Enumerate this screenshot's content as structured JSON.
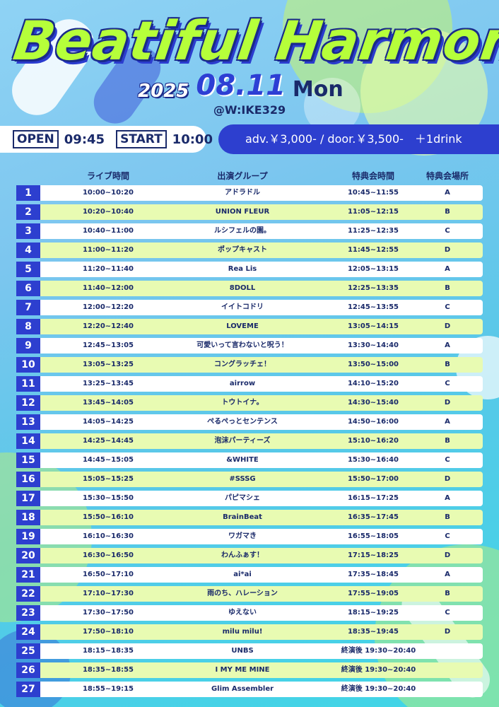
{
  "event": {
    "title": "Beatiful Harmony",
    "year": "2025",
    "month_day": "08.11",
    "weekday": "Mon",
    "venue": "@W:IKE329",
    "open_label": "OPEN",
    "open_time": "09:45",
    "start_label": "START",
    "start_time": "10:00",
    "price": "adv.￥3,000- / door.￥3,500-　＋1drink"
  },
  "table": {
    "headers": {
      "live_time": "ライブ時間",
      "group": "出演グループ",
      "perk_time": "特典会時間",
      "perk_place": "特典会場所"
    },
    "rows": [
      {
        "no": "1",
        "time": "10:00~10:20",
        "group": "アドラドル",
        "perk": "10:45~11:55",
        "place": "A"
      },
      {
        "no": "2",
        "time": "10:20~10:40",
        "group": "UNION FLEUR",
        "perk": "11:05~12:15",
        "place": "B"
      },
      {
        "no": "3",
        "time": "10:40~11:00",
        "group": "ルシフェルの園。",
        "perk": "11:25~12:35",
        "place": "C"
      },
      {
        "no": "4",
        "time": "11:00~11:20",
        "group": "ポップキャスト",
        "perk": "11:45~12:55",
        "place": "D"
      },
      {
        "no": "5",
        "time": "11:20~11:40",
        "group": "Rea Lis",
        "perk": "12:05~13:15",
        "place": "A"
      },
      {
        "no": "6",
        "time": "11:40~12:00",
        "group": "8DOLL",
        "perk": "12:25~13:35",
        "place": "B"
      },
      {
        "no": "7",
        "time": "12:00~12:20",
        "group": "イイトコドリ",
        "perk": "12:45~13:55",
        "place": "C"
      },
      {
        "no": "8",
        "time": "12:20~12:40",
        "group": "LOVEME",
        "perk": "13:05~14:15",
        "place": "D"
      },
      {
        "no": "9",
        "time": "12:45~13:05",
        "group": "可愛いって言わないと呪う！",
        "perk": "13:30~14:40",
        "place": "A"
      },
      {
        "no": "10",
        "time": "13:05~13:25",
        "group": "コングラッチェ！",
        "perk": "13:50~15:00",
        "place": "B"
      },
      {
        "no": "11",
        "time": "13:25~13:45",
        "group": "airrow",
        "perk": "14:10~15:20",
        "place": "C"
      },
      {
        "no": "12",
        "time": "13:45~14:05",
        "group": "トウトイナ。",
        "perk": "14:30~15:40",
        "place": "D"
      },
      {
        "no": "13",
        "time": "14:05~14:25",
        "group": "ぺるぺっとセンテンス",
        "perk": "14:50~16:00",
        "place": "A"
      },
      {
        "no": "14",
        "time": "14:25~14:45",
        "group": "泡沫パーティーズ",
        "perk": "15:10~16:20",
        "place": "B"
      },
      {
        "no": "15",
        "time": "14:45~15:05",
        "group": "&WHITE",
        "perk": "15:30~16:40",
        "place": "C"
      },
      {
        "no": "16",
        "time": "15:05~15:25",
        "group": "#SSSG",
        "perk": "15:50~17:00",
        "place": "D"
      },
      {
        "no": "17",
        "time": "15:30~15:50",
        "group": "パピマシェ",
        "perk": "16:15~17:25",
        "place": "A"
      },
      {
        "no": "18",
        "time": "15:50~16:10",
        "group": "BrainBeat",
        "perk": "16:35~17:45",
        "place": "B"
      },
      {
        "no": "19",
        "time": "16:10~16:30",
        "group": "ワガマき",
        "perk": "16:55~18:05",
        "place": "C"
      },
      {
        "no": "20",
        "time": "16:30~16:50",
        "group": "わんふぁす！",
        "perk": "17:15~18:25",
        "place": "D"
      },
      {
        "no": "21",
        "time": "16:50~17:10",
        "group": "ai*ai",
        "perk": "17:35~18:45",
        "place": "A"
      },
      {
        "no": "22",
        "time": "17:10~17:30",
        "group": "雨のち、ハレーション",
        "perk": "17:55~19:05",
        "place": "B"
      },
      {
        "no": "23",
        "time": "17:30~17:50",
        "group": "ゆえない",
        "perk": "18:15~19:25",
        "place": "C"
      },
      {
        "no": "24",
        "time": "17:50~18:10",
        "group": "milu milu!",
        "perk": "18:35~19:45",
        "place": "D"
      },
      {
        "no": "25",
        "time": "18:15~18:35",
        "group": "UNBS",
        "perk": "終演後 19:30~20:40",
        "place": ""
      },
      {
        "no": "26",
        "time": "18:35~18:55",
        "group": "I MY ME MINE",
        "perk": "終演後 19:30~20:40",
        "place": ""
      },
      {
        "no": "27",
        "time": "18:55~19:15",
        "group": "Glim Assembler",
        "perk": "終演後 19:30~20:40",
        "place": ""
      }
    ]
  }
}
